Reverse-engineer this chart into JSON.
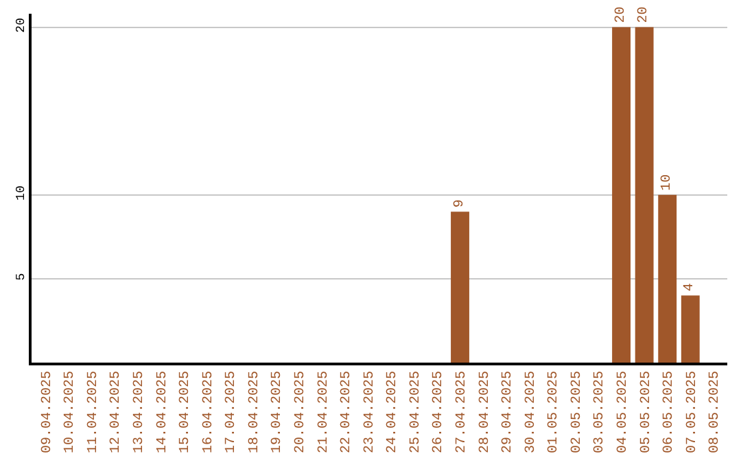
{
  "chart_data": {
    "type": "bar",
    "categories": [
      "09.04.2025",
      "10.04.2025",
      "11.04.2025",
      "12.04.2025",
      "13.04.2025",
      "14.04.2025",
      "15.04.2025",
      "16.04.2025",
      "17.04.2025",
      "18.04.2025",
      "19.04.2025",
      "20.04.2025",
      "21.04.2025",
      "22.04.2025",
      "23.04.2025",
      "24.04.2025",
      "25.04.2025",
      "26.04.2025",
      "27.04.2025",
      "28.04.2025",
      "29.04.2025",
      "30.04.2025",
      "01.05.2025",
      "02.05.2025",
      "03.05.2025",
      "04.05.2025",
      "05.05.2025",
      "06.05.2025",
      "07.05.2025",
      "08.05.2025"
    ],
    "values": [
      null,
      null,
      null,
      null,
      null,
      null,
      null,
      null,
      null,
      null,
      null,
      null,
      null,
      null,
      null,
      null,
      null,
      null,
      9,
      null,
      null,
      null,
      null,
      null,
      null,
      20,
      20,
      10,
      4,
      null
    ],
    "color": "#a0572a",
    "ylim": [
      0,
      20.8
    ],
    "yticks": [
      5,
      10,
      20
    ],
    "grid": "y",
    "legend": false,
    "data_labels": true
  }
}
